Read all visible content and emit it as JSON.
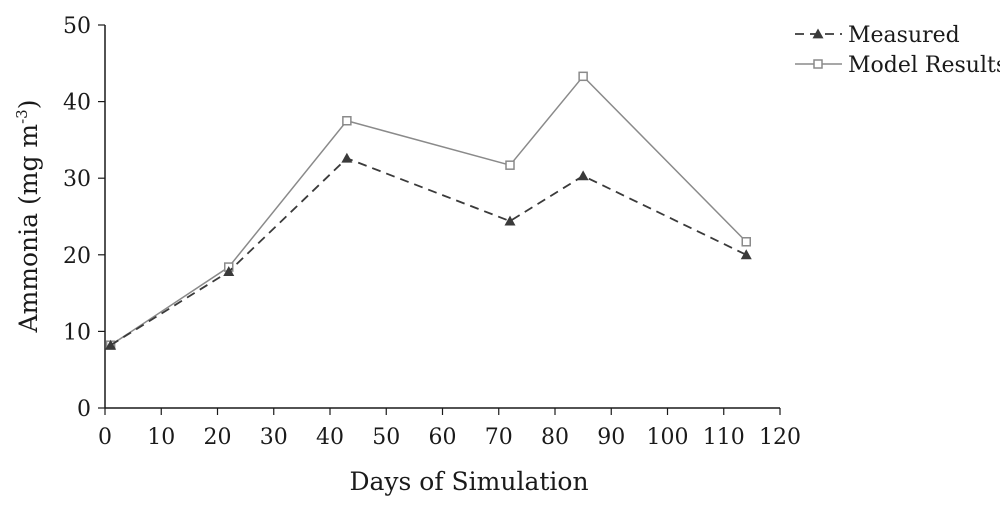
{
  "chart_data": {
    "type": "line",
    "title": "",
    "xlabel": "Days of Simulation",
    "ylabel_main": "Ammonia (mg m",
    "ylabel_sup": "-3",
    "ylabel_close": ")",
    "xlim": [
      0,
      120
    ],
    "ylim": [
      0,
      50
    ],
    "xticks": [
      0,
      10,
      20,
      30,
      40,
      50,
      60,
      70,
      80,
      90,
      100,
      110,
      120
    ],
    "yticks": [
      0,
      10,
      20,
      30,
      40,
      50
    ],
    "grid": false,
    "legend_position": "top-right",
    "series": [
      {
        "name": "Measured",
        "line_style": "dashed",
        "marker": "filled-triangle",
        "color": "#3a3a3a",
        "x": [
          1,
          22,
          43,
          72,
          85,
          114
        ],
        "y": [
          8.2,
          17.8,
          32.6,
          24.4,
          30.3,
          20.0
        ]
      },
      {
        "name": "Model Results",
        "line_style": "solid",
        "marker": "open-square",
        "color": "#8a8a8a",
        "x": [
          1,
          22,
          43,
          72,
          85,
          114
        ],
        "y": [
          8.2,
          18.4,
          37.5,
          31.7,
          43.3,
          21.7
        ]
      }
    ]
  }
}
